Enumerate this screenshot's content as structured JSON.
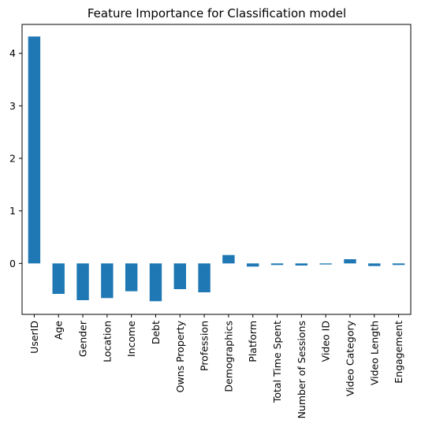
{
  "chart_data": {
    "type": "bar",
    "title": "Feature Importance for Classification model",
    "xlabel": "",
    "ylabel": "",
    "categories": [
      "UserID",
      "Age",
      "Gender",
      "Location",
      "Income",
      "Debt",
      "Owns Property",
      "Profession",
      "Demographics",
      "Platform",
      "Total Time Spent",
      "Number of Sessions",
      "Video ID",
      "Video Category",
      "Video Length",
      "Engagement"
    ],
    "values": [
      4.32,
      -0.58,
      -0.7,
      -0.66,
      -0.53,
      -0.72,
      -0.49,
      -0.55,
      0.16,
      -0.06,
      -0.03,
      -0.04,
      -0.02,
      0.08,
      -0.05,
      -0.03
    ],
    "ylim": [
      -0.97,
      4.55
    ],
    "yticks": [
      0,
      1,
      2,
      3,
      4
    ],
    "grid": false,
    "bar_color": "#1f77b4"
  }
}
